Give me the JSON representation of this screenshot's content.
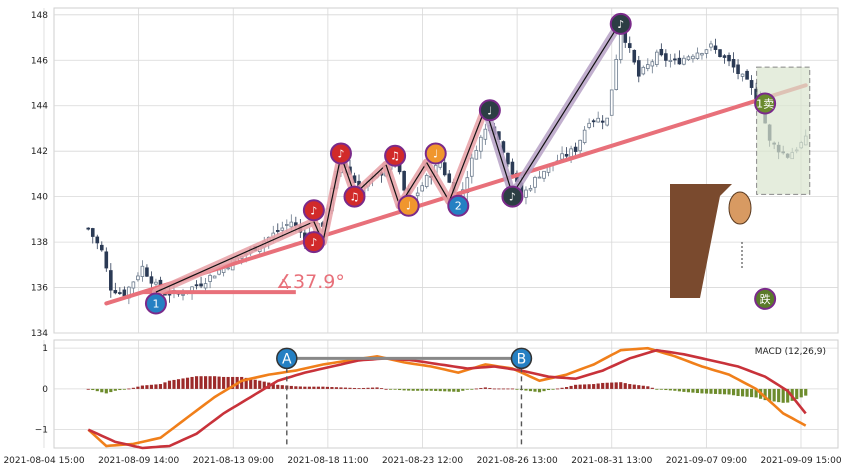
{
  "chart_data": {
    "type": "candlestick",
    "x_ticks": [
      "2021-08-04 15:00",
      "2021-08-09 14:00",
      "2021-08-13 09:00",
      "2021-08-18 11:00",
      "2021-08-23 12:00",
      "2021-08-26 13:00",
      "2021-08-31 13:00",
      "2021-09-07 09:00",
      "2021-09-09 15:00"
    ],
    "price_axis": {
      "ylim": [
        134,
        148.3
      ],
      "ticks": [
        134,
        136,
        138,
        140,
        142,
        144,
        146,
        148
      ]
    },
    "macd_axis": {
      "ylim": [
        -1.45,
        1.2
      ],
      "ticks": [
        -1,
        0,
        1
      ],
      "label": "MACD (12,26,9)"
    },
    "candles_count": 160,
    "price_anchors": [
      [
        0,
        138.6
      ],
      [
        3,
        137.6
      ],
      [
        5,
        136.0
      ],
      [
        8,
        135.7
      ],
      [
        12,
        136.9
      ],
      [
        16,
        135.8
      ],
      [
        20,
        135.7
      ],
      [
        25,
        136.2
      ],
      [
        30,
        136.9
      ],
      [
        35,
        137.5
      ],
      [
        40,
        138.2
      ],
      [
        45,
        138.9
      ],
      [
        48,
        138.2
      ],
      [
        52,
        138.8
      ],
      [
        56,
        141.7
      ],
      [
        60,
        140.3
      ],
      [
        64,
        140.9
      ],
      [
        68,
        141.6
      ],
      [
        71,
        139.6
      ],
      [
        75,
        140.8
      ],
      [
        78,
        141.5
      ],
      [
        82,
        139.7
      ],
      [
        86,
        142.2
      ],
      [
        89,
        143.3
      ],
      [
        92,
        142.1
      ],
      [
        96,
        140.0
      ],
      [
        100,
        141.0
      ],
      [
        104,
        141.6
      ],
      [
        108,
        142.1
      ],
      [
        111,
        143.4
      ],
      [
        115,
        143.4
      ],
      [
        118,
        147.5
      ],
      [
        122,
        145.3
      ],
      [
        126,
        146.2
      ],
      [
        130,
        145.9
      ],
      [
        134,
        146.3
      ],
      [
        138,
        146.6
      ],
      [
        142,
        145.9
      ],
      [
        146,
        145.0
      ],
      [
        149,
        144.1
      ],
      [
        151,
        142.4
      ],
      [
        155,
        141.8
      ],
      [
        159,
        142.5
      ]
    ],
    "macd_anchors": [
      [
        0,
        -1.0
      ],
      [
        4,
        -1.4
      ],
      [
        10,
        -1.35
      ],
      [
        16,
        -1.2
      ],
      [
        22,
        -0.7
      ],
      [
        28,
        -0.2
      ],
      [
        34,
        0.2
      ],
      [
        40,
        0.35
      ],
      [
        46,
        0.45
      ],
      [
        52,
        0.6
      ],
      [
        58,
        0.7
      ],
      [
        64,
        0.8
      ],
      [
        70,
        0.65
      ],
      [
        76,
        0.55
      ],
      [
        82,
        0.4
      ],
      [
        88,
        0.6
      ],
      [
        94,
        0.5
      ],
      [
        100,
        0.2
      ],
      [
        106,
        0.35
      ],
      [
        112,
        0.6
      ],
      [
        118,
        0.95
      ],
      [
        124,
        1.0
      ],
      [
        130,
        0.8
      ],
      [
        136,
        0.55
      ],
      [
        142,
        0.35
      ],
      [
        148,
        0.0
      ],
      [
        154,
        -0.6
      ],
      [
        159,
        -0.9
      ]
    ],
    "signal_anchors": [
      [
        0,
        -1.0
      ],
      [
        6,
        -1.3
      ],
      [
        12,
        -1.45
      ],
      [
        18,
        -1.4
      ],
      [
        24,
        -1.1
      ],
      [
        30,
        -0.6
      ],
      [
        36,
        -0.2
      ],
      [
        42,
        0.2
      ],
      [
        48,
        0.4
      ],
      [
        54,
        0.55
      ],
      [
        60,
        0.7
      ],
      [
        66,
        0.75
      ],
      [
        72,
        0.7
      ],
      [
        78,
        0.6
      ],
      [
        84,
        0.5
      ],
      [
        90,
        0.55
      ],
      [
        96,
        0.45
      ],
      [
        102,
        0.3
      ],
      [
        108,
        0.25
      ],
      [
        114,
        0.45
      ],
      [
        120,
        0.75
      ],
      [
        126,
        0.95
      ],
      [
        132,
        0.85
      ],
      [
        138,
        0.7
      ],
      [
        144,
        0.55
      ],
      [
        150,
        0.3
      ],
      [
        155,
        -0.05
      ],
      [
        159,
        -0.6
      ]
    ],
    "annotations": {
      "trend_line": {
        "from": [
          4,
          135.3
        ],
        "to": [
          159,
          144.9
        ],
        "color": "#e8707a"
      },
      "angle_label": "∡37.9°",
      "angle_base": {
        "from": [
          12,
          135.8
        ],
        "to": [
          46,
          135.8
        ]
      },
      "zigzag": [
        [
          15,
          135.8
        ],
        [
          50,
          138.9
        ],
        [
          52,
          138.0
        ],
        [
          56,
          141.8
        ],
        [
          59,
          140.1
        ],
        [
          66,
          141.4
        ],
        [
          69,
          139.6
        ],
        [
          75,
          141.5
        ],
        [
          80,
          139.8
        ],
        [
          88,
          143.9
        ],
        [
          94,
          140.1
        ],
        [
          118,
          147.7
        ]
      ],
      "markers": [
        {
          "i": 15,
          "v": 135.3,
          "label": "1",
          "fill": "#2580c3"
        },
        {
          "i": 82,
          "v": 139.6,
          "label": "2",
          "fill": "#2580c3"
        },
        {
          "i": 50,
          "v": 139.4,
          "label": "♪",
          "fill": "#d12a2a"
        },
        {
          "i": 50,
          "v": 138.0,
          "label": "♪",
          "fill": "#d12a2a"
        },
        {
          "i": 56,
          "v": 141.9,
          "label": "♪",
          "fill": "#d12a2a"
        },
        {
          "i": 59,
          "v": 140.0,
          "label": "♫",
          "fill": "#d12a2a"
        },
        {
          "i": 68,
          "v": 141.8,
          "label": "♫",
          "fill": "#d12a2a"
        },
        {
          "i": 71,
          "v": 139.6,
          "label": "♩",
          "fill": "#f0962e"
        },
        {
          "i": 77,
          "v": 141.9,
          "label": "♩",
          "fill": "#f0962e"
        },
        {
          "i": 89,
          "v": 143.8,
          "label": "♩",
          "fill": "#2c3e44"
        },
        {
          "i": 94,
          "v": 140.0,
          "label": "♪",
          "fill": "#2c3e44"
        },
        {
          "i": 118,
          "v": 147.6,
          "label": "♪",
          "fill": "#2c3e44"
        },
        {
          "i": 150,
          "v": 144.1,
          "label": "1卖",
          "fill": "#6a8a2d"
        },
        {
          "i": 150,
          "v": 135.5,
          "label": "跌",
          "fill": "#5a7a2a"
        }
      ],
      "sell_box": {
        "from": [
          149,
          145.7
        ],
        "to": [
          159,
          140.1
        ]
      },
      "macd_markers": [
        {
          "i": 44,
          "label": "A"
        },
        {
          "i": 96,
          "label": "B"
        }
      ]
    }
  },
  "colors": {
    "up": "#6b7a8c",
    "down": "#2b3a55",
    "macd": "#f07f1a",
    "signal": "#c8323a",
    "hist_pos": "#9c2a2a",
    "hist_neg": "#6d8c2d",
    "grid": "#d8d8d8",
    "trend": "#e8707a",
    "zigzag_red": "#e8a0a6",
    "zigzag_purple": "#b7a2c6"
  }
}
